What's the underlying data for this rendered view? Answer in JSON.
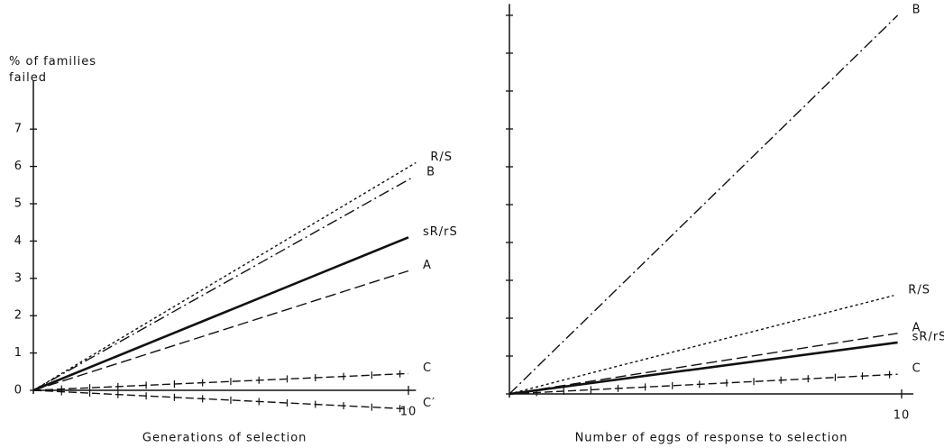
{
  "chart_data": [
    {
      "type": "line",
      "ylabel": "% of families failed",
      "xlabel": "Generations of selection",
      "xlim": [
        0,
        10.2
      ],
      "ylim": [
        0,
        8.3
      ],
      "xticks": [
        10
      ],
      "yticks": [
        0,
        1,
        2,
        3,
        4,
        5,
        6,
        7
      ],
      "tick_labels": true,
      "series": [
        {
          "name": "R/S",
          "color": "#111",
          "style": "dotted",
          "x": [
            0,
            10.2
          ],
          "values": [
            0,
            6.1
          ]
        },
        {
          "name": "B",
          "color": "#111",
          "style": "dashdot",
          "x": [
            0,
            10.1
          ],
          "values": [
            0,
            5.7
          ]
        },
        {
          "name": "sR/rS",
          "color": "#111",
          "style": "solid",
          "x": [
            0,
            10
          ],
          "values": [
            0,
            4.1
          ]
        },
        {
          "name": "A",
          "color": "#111",
          "style": "dashed",
          "x": [
            0,
            10
          ],
          "values": [
            0,
            3.2
          ]
        },
        {
          "name": "C",
          "color": "#111",
          "style": "cross",
          "x": [
            0,
            10
          ],
          "values": [
            0,
            0.45
          ]
        },
        {
          "name": "C′",
          "color": "#111",
          "style": "cross",
          "x": [
            0,
            10
          ],
          "values": [
            0,
            -0.5
          ]
        }
      ]
    },
    {
      "type": "line",
      "xlabel": "Number of eggs of response to selection",
      "xlim": [
        0,
        10.3
      ],
      "ylim": [
        0,
        10.3
      ],
      "xticks": [
        10
      ],
      "yticks": [
        0,
        1,
        2,
        3,
        4,
        5,
        6,
        7,
        8,
        9,
        10
      ],
      "tick_labels": false,
      "series": [
        {
          "name": "B",
          "color": "#111",
          "style": "dashdot",
          "x": [
            0,
            9.9
          ],
          "values": [
            0,
            10
          ]
        },
        {
          "name": "R/S",
          "color": "#111",
          "style": "dotted",
          "x": [
            0,
            9.8
          ],
          "values": [
            0,
            2.6
          ]
        },
        {
          "name": "A",
          "color": "#111",
          "style": "dashed",
          "x": [
            0,
            9.9
          ],
          "values": [
            0,
            1.6
          ]
        },
        {
          "name": "sR/rS",
          "color": "#111",
          "style": "solid",
          "x": [
            0,
            9.9
          ],
          "values": [
            0,
            1.36
          ]
        },
        {
          "name": "C",
          "color": "#111",
          "style": "cross",
          "x": [
            0,
            9.9
          ],
          "values": [
            0,
            0.52
          ]
        }
      ]
    }
  ]
}
